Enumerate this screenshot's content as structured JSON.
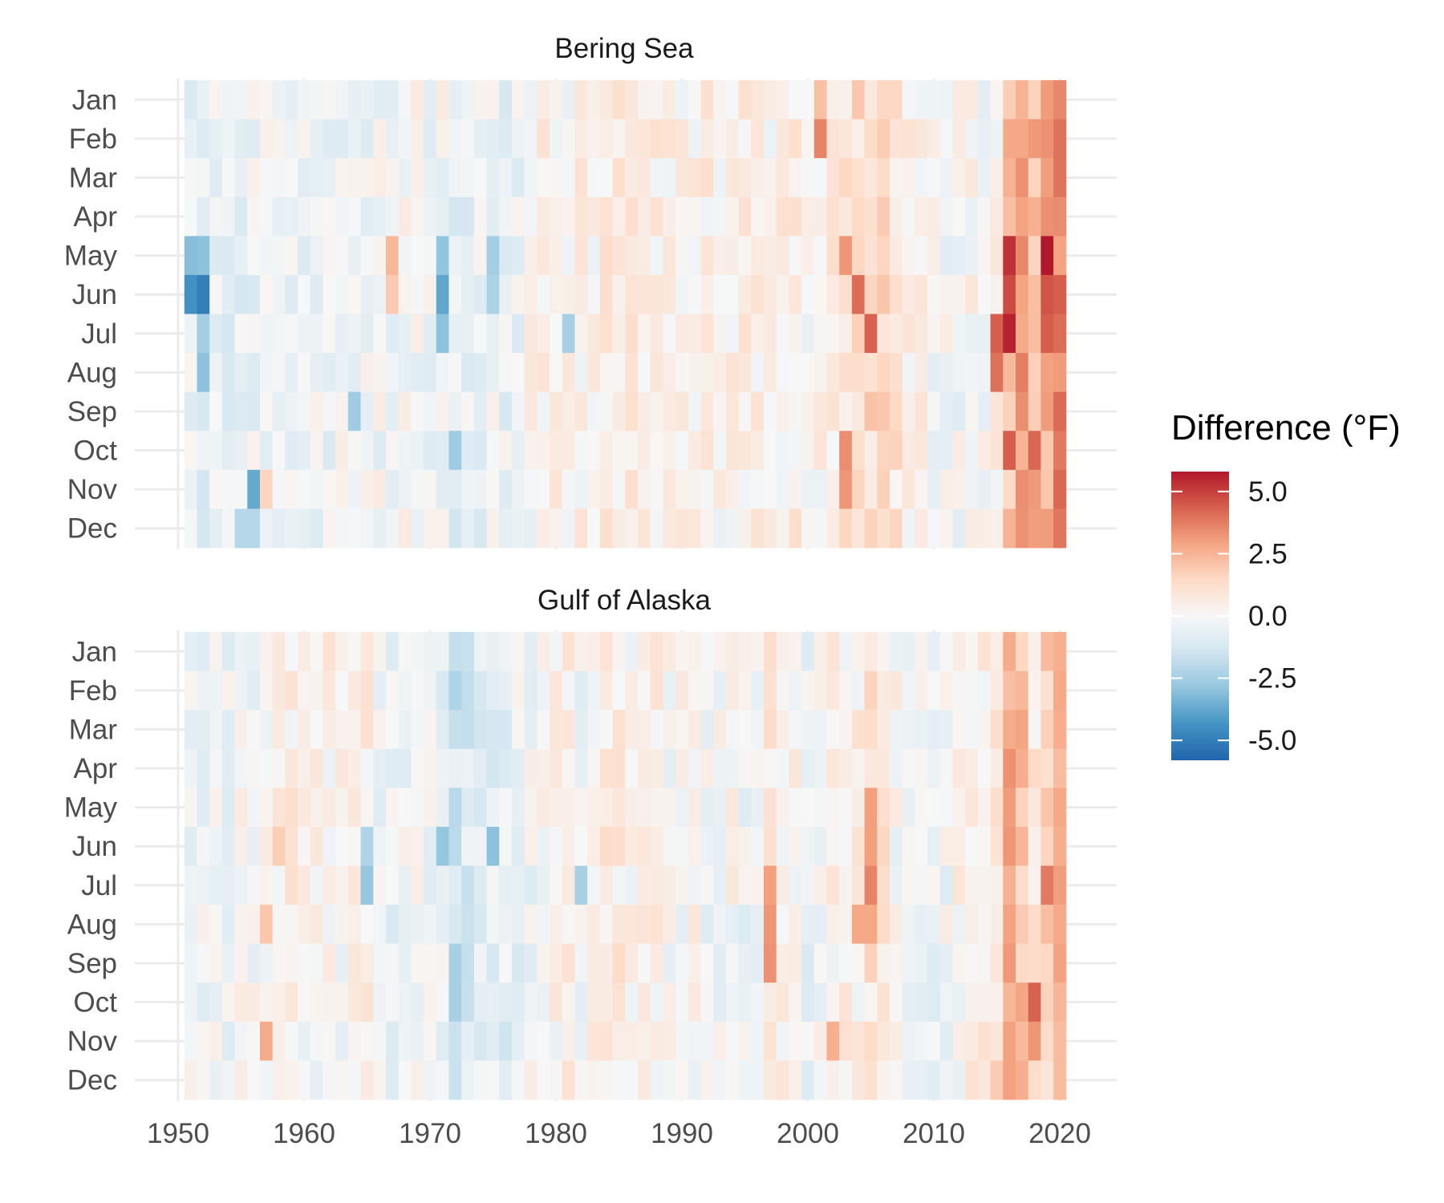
{
  "chart_data": {
    "type": "heatmap",
    "title": "",
    "xlabel": "",
    "ylabel": "",
    "x_ticks": [
      1950,
      1960,
      1970,
      1980,
      1990,
      2000,
      2010,
      2020
    ],
    "xlim": [
      1950,
      2020
    ],
    "months": [
      "Jan",
      "Feb",
      "Mar",
      "Apr",
      "May",
      "Jun",
      "Jul",
      "Aug",
      "Sep",
      "Oct",
      "Nov",
      "Dec"
    ],
    "value_range": [
      -5.8,
      5.8
    ],
    "legend": {
      "title": "Difference (°F)",
      "ticks": [
        5.0,
        2.5,
        0.0,
        -2.5,
        -5.0
      ],
      "tick_labels": [
        "5.0",
        "2.5",
        "0.0",
        "-2.5",
        "-5.0"
      ],
      "position": "right",
      "palette": [
        "#2166ac",
        "#4393c3",
        "#92c5de",
        "#d1e5f0",
        "#f7f7f7",
        "#fddbc7",
        "#f4a582",
        "#d6604d",
        "#b2182b"
      ]
    },
    "panels": [
      {
        "name": "Bering Sea",
        "profile": [
          -0.6,
          -0.6,
          -0.5,
          -0.5,
          -0.6,
          -0.4,
          -0.3,
          -0.3,
          -0.3,
          -0.4,
          -0.4,
          -0.4,
          -0.3,
          -0.3,
          -0.3,
          -0.2,
          -0.3,
          -0.1,
          -0.1,
          -0.2,
          -0.1,
          -0.7,
          -0.6,
          -0.4,
          -0.3,
          -0.4,
          -0.3,
          0.1,
          0.4,
          0.4,
          0.2,
          0.4,
          0.2,
          0.6,
          0.5,
          0.7,
          0.3,
          0.4,
          0.3,
          0.3,
          0.4,
          0.5,
          0.2,
          0.4,
          0.5,
          0.4,
          0.3,
          0.4,
          0.5,
          0.1,
          0.2,
          0.5,
          1.1,
          1.2,
          1.3,
          1.6,
          0.9,
          0.4,
          0.3,
          0.0,
          -0.1,
          -0.1,
          0.1,
          0.0,
          0.3,
          2.2,
          2.9,
          2.4,
          2.7,
          3.6,
          1.8
        ],
        "anomalies": [
          {
            "year": 1951,
            "month": "May",
            "value": -3.1
          },
          {
            "year": 1952,
            "month": "May",
            "value": -3.0
          },
          {
            "year": 1951,
            "month": "Jun",
            "value": -4.4
          },
          {
            "year": 1952,
            "month": "Jun",
            "value": -5.0
          },
          {
            "year": 1952,
            "month": "Jul",
            "value": -2.5
          },
          {
            "year": 1952,
            "month": "Aug",
            "value": -3.0
          },
          {
            "year": 1956,
            "month": "Nov",
            "value": -3.7
          },
          {
            "year": 1957,
            "month": "Nov",
            "value": 1.6
          },
          {
            "year": 1955,
            "month": "Dec",
            "value": -2.1
          },
          {
            "year": 1956,
            "month": "Dec",
            "value": -2.1
          },
          {
            "year": 1967,
            "month": "May",
            "value": 2.4
          },
          {
            "year": 1967,
            "month": "Jun",
            "value": 1.9
          },
          {
            "year": 1971,
            "month": "May",
            "value": -2.9
          },
          {
            "year": 1971,
            "month": "Jun",
            "value": -3.8
          },
          {
            "year": 1971,
            "month": "Jul",
            "value": -3.0
          },
          {
            "year": 1972,
            "month": "Oct",
            "value": -2.6
          },
          {
            "year": 1975,
            "month": "May",
            "value": -2.5
          },
          {
            "year": 1975,
            "month": "Jun",
            "value": -2.3
          },
          {
            "year": 1964,
            "month": "Sep",
            "value": -2.6
          },
          {
            "year": 1981,
            "month": "Jul",
            "value": -2.4
          },
          {
            "year": 2001,
            "month": "Jan",
            "value": 2.2
          },
          {
            "year": 2001,
            "month": "Feb",
            "value": 3.6
          },
          {
            "year": 2003,
            "month": "May",
            "value": 3.2
          },
          {
            "year": 2004,
            "month": "Jun",
            "value": 4.1
          },
          {
            "year": 2005,
            "month": "Jul",
            "value": 4.3
          },
          {
            "year": 2003,
            "month": "Oct",
            "value": 3.4
          },
          {
            "year": 2003,
            "month": "Nov",
            "value": 3.2
          },
          {
            "year": 2016,
            "month": "May",
            "value": 5.3
          },
          {
            "year": 2016,
            "month": "Jun",
            "value": 4.8
          },
          {
            "year": 2016,
            "month": "Jul",
            "value": 5.6
          },
          {
            "year": 2019,
            "month": "May",
            "value": 5.8
          },
          {
            "year": 2019,
            "month": "Jun",
            "value": 4.6
          },
          {
            "year": 2019,
            "month": "Jul",
            "value": 4.4
          },
          {
            "year": 2015,
            "month": "Jul",
            "value": 4.4
          },
          {
            "year": 2015,
            "month": "Aug",
            "value": 4.0
          },
          {
            "year": 2018,
            "month": "Oct",
            "value": 4.2
          },
          {
            "year": 2016,
            "month": "Oct",
            "value": 4.4
          }
        ]
      },
      {
        "name": "Gulf of Alaska",
        "profile": [
          -0.3,
          -0.2,
          0.0,
          -0.2,
          0.1,
          -0.1,
          0.3,
          0.6,
          0.5,
          0.2,
          0.1,
          0.3,
          0.1,
          0.3,
          0.4,
          -0.5,
          -0.5,
          -0.3,
          0.1,
          -0.4,
          -0.6,
          -1.2,
          -1.0,
          -0.7,
          -0.6,
          -0.8,
          -0.4,
          -0.2,
          0.1,
          0.2,
          0.4,
          -0.2,
          0.3,
          0.7,
          0.6,
          0.2,
          0.3,
          0.3,
          0.1,
          0.0,
          0.1,
          -0.2,
          -0.1,
          0.1,
          -0.3,
          -0.3,
          0.7,
          0.4,
          0.1,
          -0.5,
          -0.1,
          0.3,
          0.4,
          0.4,
          0.9,
          1.0,
          0.1,
          -0.3,
          -0.4,
          -0.4,
          -0.2,
          0.2,
          0.4,
          0.5,
          1.1,
          2.5,
          2.1,
          0.8,
          1.7,
          2.6,
          1.3
        ],
        "anomalies": [
          {
            "year": 1957,
            "month": "Nov",
            "value": 2.7
          },
          {
            "year": 1957,
            "month": "Aug",
            "value": 2.0
          },
          {
            "year": 1958,
            "month": "Jun",
            "value": 1.8
          },
          {
            "year": 1965,
            "month": "Jul",
            "value": -2.8
          },
          {
            "year": 1965,
            "month": "Jun",
            "value": -2.2
          },
          {
            "year": 1971,
            "month": "Jun",
            "value": -2.8
          },
          {
            "year": 1972,
            "month": "Sep",
            "value": -2.4
          },
          {
            "year": 1972,
            "month": "Oct",
            "value": -2.4
          },
          {
            "year": 1975,
            "month": "Jun",
            "value": -3.0
          },
          {
            "year": 1972,
            "month": "Feb",
            "value": -2.2
          },
          {
            "year": 1982,
            "month": "Jul",
            "value": -2.4
          },
          {
            "year": 1997,
            "month": "Jul",
            "value": 3.0
          },
          {
            "year": 1997,
            "month": "Aug",
            "value": 3.2
          },
          {
            "year": 1997,
            "month": "Sep",
            "value": 3.3
          },
          {
            "year": 2005,
            "month": "May",
            "value": 3.0
          },
          {
            "year": 2005,
            "month": "Jun",
            "value": 3.0
          },
          {
            "year": 2005,
            "month": "Jul",
            "value": 3.6
          },
          {
            "year": 2004,
            "month": "Aug",
            "value": 2.8
          },
          {
            "year": 2005,
            "month": "Aug",
            "value": 2.8
          },
          {
            "year": 2002,
            "month": "Nov",
            "value": 2.6
          },
          {
            "year": 2016,
            "month": "Apr",
            "value": 3.3
          },
          {
            "year": 2016,
            "month": "Jun",
            "value": 3.2
          },
          {
            "year": 2018,
            "month": "Oct",
            "value": 4.3
          },
          {
            "year": 2019,
            "month": "Jul",
            "value": 3.8
          },
          {
            "year": 2018,
            "month": "Nov",
            "value": 3.2
          }
        ]
      }
    ]
  }
}
